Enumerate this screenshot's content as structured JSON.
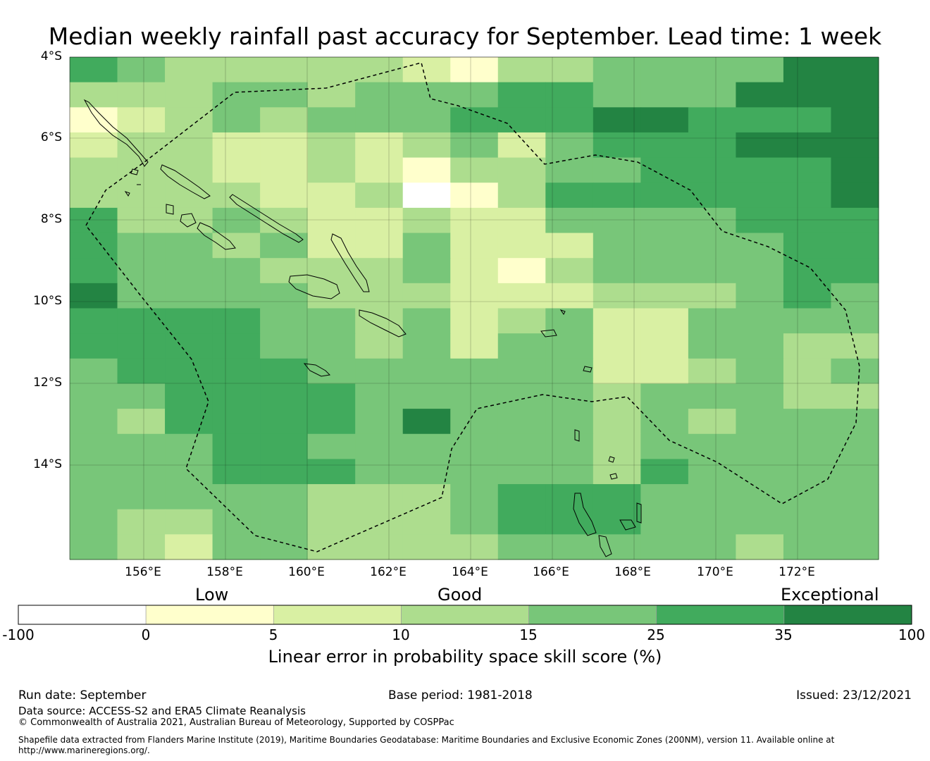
{
  "title": "Median weekly rainfall past accuracy for September. Lead time: 1 week",
  "map": {
    "lat_labels": [
      "4°S",
      "6°S",
      "8°S",
      "10°S",
      "12°S",
      "14°S"
    ],
    "lon_labels": [
      "156°E",
      "158°E",
      "160°E",
      "162°E",
      "164°E",
      "166°E",
      "168°E",
      "170°E",
      "172°E"
    ],
    "grid_rows": [
      "54333332133444466",
      "33344344455444666",
      "12343444555665556",
      "23322323424555666",
      "33322321334455556",
      "33332230135555556",
      "53343223224444555",
      "54434224222444455",
      "54443334213444455",
      "64444333222333454",
      "55554434234224444",
      "55554434244224433",
      "45555444444223434",
      "44555544444344433",
      "43555546444343444",
      "44455444444344444",
      "44455544444354444",
      "44444333455544444",
      "43344333455544444",
      "43244333344444344"
    ]
  },
  "legend": {
    "category_labels": [
      "Low",
      "Good",
      "Exceptional"
    ],
    "colors": [
      "#ffffff",
      "#ffffcc",
      "#d9f0a3",
      "#addd8e",
      "#78c679",
      "#41ab5d",
      "#238443"
    ],
    "ticks": [
      "-100",
      "0",
      "5",
      "10",
      "15",
      "25",
      "35",
      "100"
    ],
    "title": "Linear error in probability space skill score (%)"
  },
  "footer": {
    "run_date": "Run date: September",
    "base_period": "Base period: 1981-2018",
    "issued": "Issued: 23/12/2021",
    "data_source": "Data source: ACCESS-S2 and ERA5 Climate Reanalysis",
    "copyright": "© Commonwealth of Australia 2021, Australian Bureau of Meteorology, Supported by COSPPac",
    "shapefile_line1": "Shapefile data extracted from Flanders Marine Institute (2019), Maritime Boundaries Geodatabase: Maritime Boundaries and Exclusive Economic Zones (200NM), version 11. Available online at",
    "shapefile_line2": "http://www.marineregions.org/."
  }
}
